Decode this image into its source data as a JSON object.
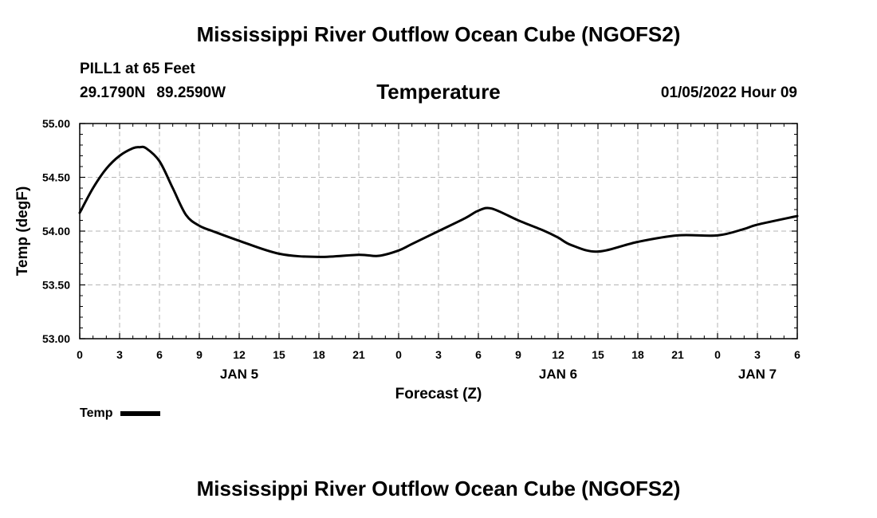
{
  "header": {
    "title": "Mississippi River Outflow Ocean Cube (NGOFS2)",
    "station": "PILL1 at 65 Feet",
    "lat": "29.1790N",
    "lon": "89.2590W",
    "variable": "Temperature",
    "datetime": "01/05/2022 Hour 09"
  },
  "footer": {
    "title": "Mississippi River Outflow Ocean Cube (NGOFS2)"
  },
  "legend": {
    "label": "Temp"
  },
  "chart_data": {
    "type": "line",
    "title": "Temperature",
    "xlabel": "Forecast (Z)",
    "ylabel": "Temp (degF)",
    "xlim": [
      0,
      54
    ],
    "ylim": [
      53.0,
      55.0
    ],
    "grid": true,
    "x_ticks": [
      0,
      3,
      6,
      9,
      12,
      15,
      18,
      21,
      24,
      27,
      30,
      33,
      36,
      39,
      42,
      45,
      48,
      51,
      54
    ],
    "x_tick_labels": [
      "0",
      "3",
      "6",
      "9",
      "12",
      "15",
      "18",
      "21",
      "0",
      "3",
      "6",
      "9",
      "12",
      "15",
      "18",
      "21",
      "0",
      "3",
      "6"
    ],
    "day_labels": [
      {
        "x": 12,
        "label": "JAN 5"
      },
      {
        "x": 36,
        "label": "JAN 6"
      },
      {
        "x": 51,
        "label": "JAN 7"
      }
    ],
    "y_ticks": [
      53.0,
      53.5,
      54.0,
      54.5,
      55.0
    ],
    "y_tick_labels": [
      "53.00",
      "53.50",
      "54.00",
      "54.50",
      "55.00"
    ],
    "series": [
      {
        "name": "Temp",
        "color": "#000000",
        "x": [
          0,
          1,
          2,
          3,
          4,
          4.5,
          5,
          6,
          7,
          8,
          9,
          10,
          12,
          15,
          18,
          21,
          22.5,
          24,
          25,
          27,
          29,
          30,
          31,
          33,
          35,
          36,
          37,
          39,
          42,
          45,
          48,
          50,
          51,
          54
        ],
        "y": [
          54.17,
          54.4,
          54.58,
          54.7,
          54.77,
          54.78,
          54.77,
          54.65,
          54.4,
          54.15,
          54.05,
          54.0,
          53.91,
          53.79,
          53.76,
          53.78,
          53.77,
          53.82,
          53.88,
          54.0,
          54.12,
          54.19,
          54.21,
          54.1,
          54.0,
          53.94,
          53.87,
          53.81,
          53.9,
          53.96,
          53.96,
          54.02,
          54.06,
          54.14
        ]
      }
    ]
  }
}
